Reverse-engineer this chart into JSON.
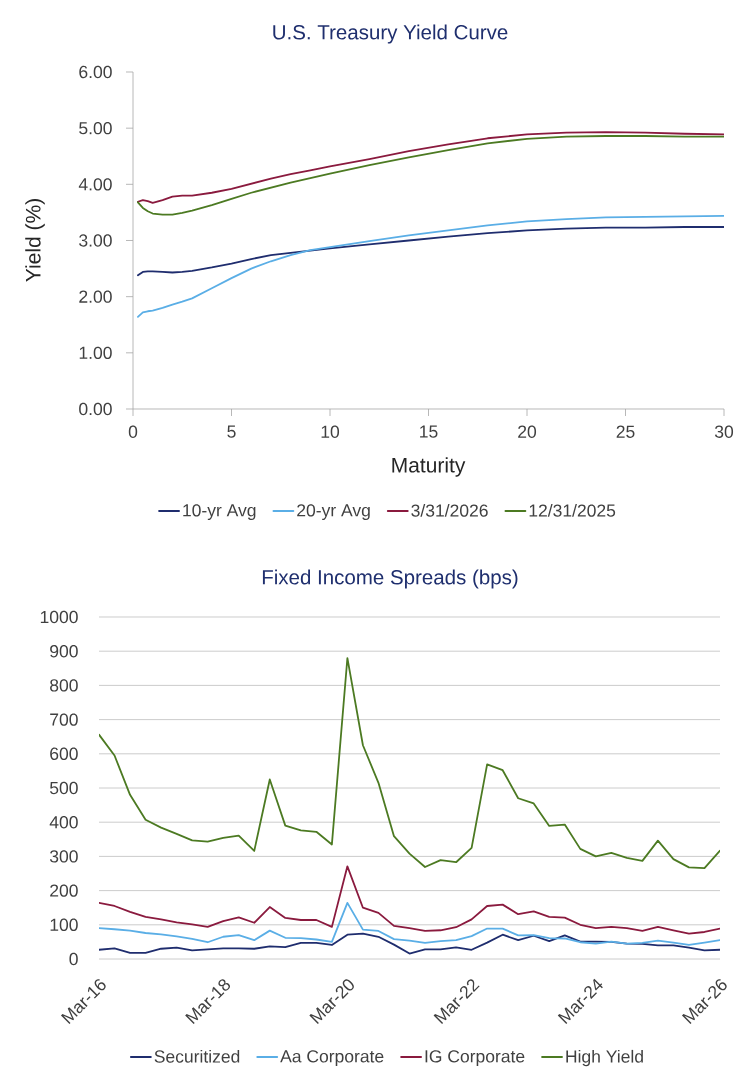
{
  "chart_data": [
    {
      "type": "line",
      "title": "U.S. Treasury Yield Curve",
      "xlabel": "Maturity",
      "ylabel": "Yield (%)",
      "x": [
        0.25,
        0.5,
        0.75,
        1,
        1.5,
        2,
        2.5,
        3,
        4,
        5,
        6,
        7,
        8,
        9,
        10,
        12,
        14,
        16,
        18,
        20,
        22,
        24,
        26,
        28,
        30
      ],
      "series": [
        {
          "name": "10-yr Avg",
          "color": "#1f2d6e",
          "values": [
            2.38,
            2.44,
            2.45,
            2.45,
            2.44,
            2.43,
            2.44,
            2.46,
            2.52,
            2.59,
            2.67,
            2.74,
            2.78,
            2.82,
            2.86,
            2.93,
            3.0,
            3.07,
            3.13,
            3.18,
            3.21,
            3.23,
            3.23,
            3.24,
            3.24
          ]
        },
        {
          "name": "20-yr Avg",
          "color": "#5aaee6",
          "values": [
            1.64,
            1.72,
            1.74,
            1.75,
            1.8,
            1.86,
            1.91,
            1.97,
            2.15,
            2.33,
            2.5,
            2.63,
            2.74,
            2.83,
            2.88,
            2.99,
            3.09,
            3.18,
            3.27,
            3.34,
            3.38,
            3.41,
            3.42,
            3.43,
            3.44
          ]
        },
        {
          "name": "3/31/2026",
          "color": "#8a1a3e",
          "values": [
            3.69,
            3.72,
            3.7,
            3.67,
            3.72,
            3.78,
            3.8,
            3.8,
            3.85,
            3.92,
            4.01,
            4.1,
            4.18,
            4.25,
            4.32,
            4.45,
            4.59,
            4.71,
            4.82,
            4.89,
            4.92,
            4.93,
            4.92,
            4.9,
            4.89
          ]
        },
        {
          "name": "12/31/2025",
          "color": "#4c7a22",
          "values": [
            3.68,
            3.58,
            3.52,
            3.48,
            3.46,
            3.46,
            3.49,
            3.53,
            3.63,
            3.74,
            3.85,
            3.94,
            4.03,
            4.11,
            4.19,
            4.34,
            4.48,
            4.61,
            4.73,
            4.81,
            4.85,
            4.86,
            4.86,
            4.85,
            4.85
          ]
        }
      ],
      "xlim": [
        0,
        30
      ],
      "ylim": [
        0,
        6
      ],
      "xticks": [
        0,
        5,
        10,
        15,
        20,
        25,
        30
      ],
      "yticks": [
        {
          "value": 0,
          "label": "0.00"
        },
        {
          "value": 1,
          "label": "1.00"
        },
        {
          "value": 2,
          "label": "2.00"
        },
        {
          "value": 3,
          "label": "3.00"
        },
        {
          "value": 4,
          "label": "4.00"
        },
        {
          "value": 5,
          "label": "5.00"
        },
        {
          "value": 6,
          "label": "6.00"
        }
      ],
      "legend": "bottom"
    },
    {
      "type": "line",
      "title": "Fixed Income Spreads (bps)",
      "x": [
        "2016-03",
        "2016-06",
        "2016-09",
        "2016-12",
        "2017-03",
        "2017-06",
        "2017-09",
        "2017-12",
        "2018-03",
        "2018-06",
        "2018-09",
        "2018-12",
        "2019-03",
        "2019-06",
        "2019-09",
        "2019-12",
        "2020-03",
        "2020-06",
        "2020-09",
        "2020-12",
        "2021-03",
        "2021-06",
        "2021-09",
        "2021-12",
        "2022-03",
        "2022-06",
        "2022-09",
        "2022-12",
        "2023-03",
        "2023-06",
        "2023-09",
        "2023-12",
        "2024-03",
        "2024-06",
        "2024-09",
        "2024-12",
        "2025-03",
        "2025-06",
        "2025-09",
        "2025-12",
        "2026-03"
      ],
      "series": [
        {
          "name": "Securitized",
          "color": "#1f2d6e",
          "values": [
            27,
            31,
            18,
            18,
            30,
            33,
            25,
            28,
            31,
            31,
            30,
            37,
            35,
            47,
            47,
            41,
            71,
            74,
            65,
            42,
            16,
            28,
            28,
            34,
            27,
            48,
            71,
            55,
            68,
            52,
            69,
            51,
            51,
            50,
            45,
            44,
            40,
            40,
            33,
            25,
            27
          ]
        },
        {
          "name": "Aa Corporate",
          "color": "#5aaee6",
          "values": [
            90,
            87,
            83,
            76,
            72,
            66,
            59,
            49,
            65,
            70,
            55,
            83,
            62,
            61,
            57,
            50,
            164,
            86,
            82,
            58,
            54,
            47,
            52,
            55,
            67,
            89,
            89,
            69,
            70,
            61,
            60,
            49,
            45,
            51,
            45,
            47,
            54,
            48,
            41,
            48,
            55
          ]
        },
        {
          "name": "IG Corporate",
          "color": "#8a1a3e",
          "values": [
            164,
            155,
            138,
            123,
            116,
            107,
            101,
            94,
            111,
            122,
            106,
            152,
            120,
            114,
            114,
            94,
            271,
            150,
            135,
            97,
            90,
            82,
            84,
            93,
            116,
            155,
            159,
            131,
            139,
            123,
            121,
            100,
            90,
            94,
            90,
            82,
            94,
            84,
            74,
            79,
            89
          ]
        },
        {
          "name": "High Yield",
          "color": "#4c7a22",
          "values": [
            656,
            595,
            480,
            407,
            384,
            366,
            347,
            343,
            354,
            361,
            316,
            525,
            390,
            376,
            372,
            335,
            880,
            625,
            515,
            359,
            308,
            269,
            289,
            283,
            325,
            569,
            552,
            470,
            455,
            389,
            393,
            322,
            300,
            310,
            296,
            287,
            346,
            292,
            268,
            266,
            317
          ]
        }
      ],
      "xlim": [
        "2016-03",
        "2026-03"
      ],
      "ylim": [
        0,
        1000
      ],
      "yticks": [
        0,
        100,
        200,
        300,
        400,
        500,
        600,
        700,
        800,
        900,
        1000
      ],
      "xticks": [
        {
          "value": "2016-03",
          "label": "Mar-16"
        },
        {
          "value": "2018-03",
          "label": "Mar-18"
        },
        {
          "value": "2020-03",
          "label": "Mar-20"
        },
        {
          "value": "2022-03",
          "label": "Mar-22"
        },
        {
          "value": "2024-03",
          "label": "Mar-24"
        },
        {
          "value": "2026-03",
          "label": "Mar-26"
        }
      ],
      "grid": "y",
      "legend": "bottom"
    }
  ]
}
